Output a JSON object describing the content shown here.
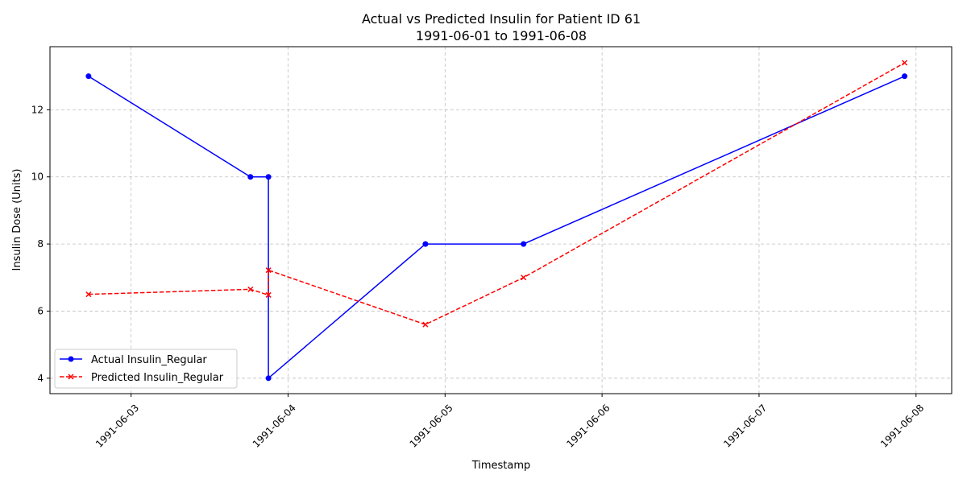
{
  "chart_data": {
    "type": "line",
    "title": "Actual vs Predicted Insulin for Patient ID 61",
    "subtitle": "1991-06-01 to 1991-06-08",
    "xlabel": "Timestamp",
    "ylabel": "Insulin Dose (Units)",
    "x_ticks": [
      "1991-06-03",
      "1991-06-04",
      "1991-06-05",
      "1991-06-06",
      "1991-06-07",
      "1991-06-08"
    ],
    "y_ticks": [
      4,
      6,
      8,
      10,
      12
    ],
    "xlim": [
      "1991-06-02 11:36",
      "1991-06-08 05:27"
    ],
    "ylim": [
      3.54,
      13.88
    ],
    "grid": true,
    "legend_position": "lower-left",
    "series": [
      {
        "name": "Actual Insulin_Regular",
        "color": "#0000ff",
        "line_style": "solid",
        "marker": "circle",
        "points": [
          {
            "x": "1991-06-02 17:30",
            "y": 13
          },
          {
            "x": "1991-06-03 18:15",
            "y": 10
          },
          {
            "x": "1991-06-03 21:00",
            "y": 10
          },
          {
            "x": "1991-06-03 21:00",
            "y": 4
          },
          {
            "x": "1991-06-04 21:00",
            "y": 8
          },
          {
            "x": "1991-06-05 12:00",
            "y": 8
          },
          {
            "x": "1991-06-07 22:15",
            "y": 13
          }
        ]
      },
      {
        "name": "Predicted Insulin_Regular",
        "color": "#ff0000",
        "line_style": "dashed",
        "marker": "x",
        "points": [
          {
            "x": "1991-06-02 17:30",
            "y": 6.5
          },
          {
            "x": "1991-06-03 18:15",
            "y": 6.65
          },
          {
            "x": "1991-06-03 21:00",
            "y": 6.48
          },
          {
            "x": "1991-06-03 21:00",
            "y": 7.22
          },
          {
            "x": "1991-06-04 21:00",
            "y": 5.6
          },
          {
            "x": "1991-06-05 12:00",
            "y": 7.0
          },
          {
            "x": "1991-06-07 22:15",
            "y": 13.4
          }
        ]
      }
    ]
  }
}
